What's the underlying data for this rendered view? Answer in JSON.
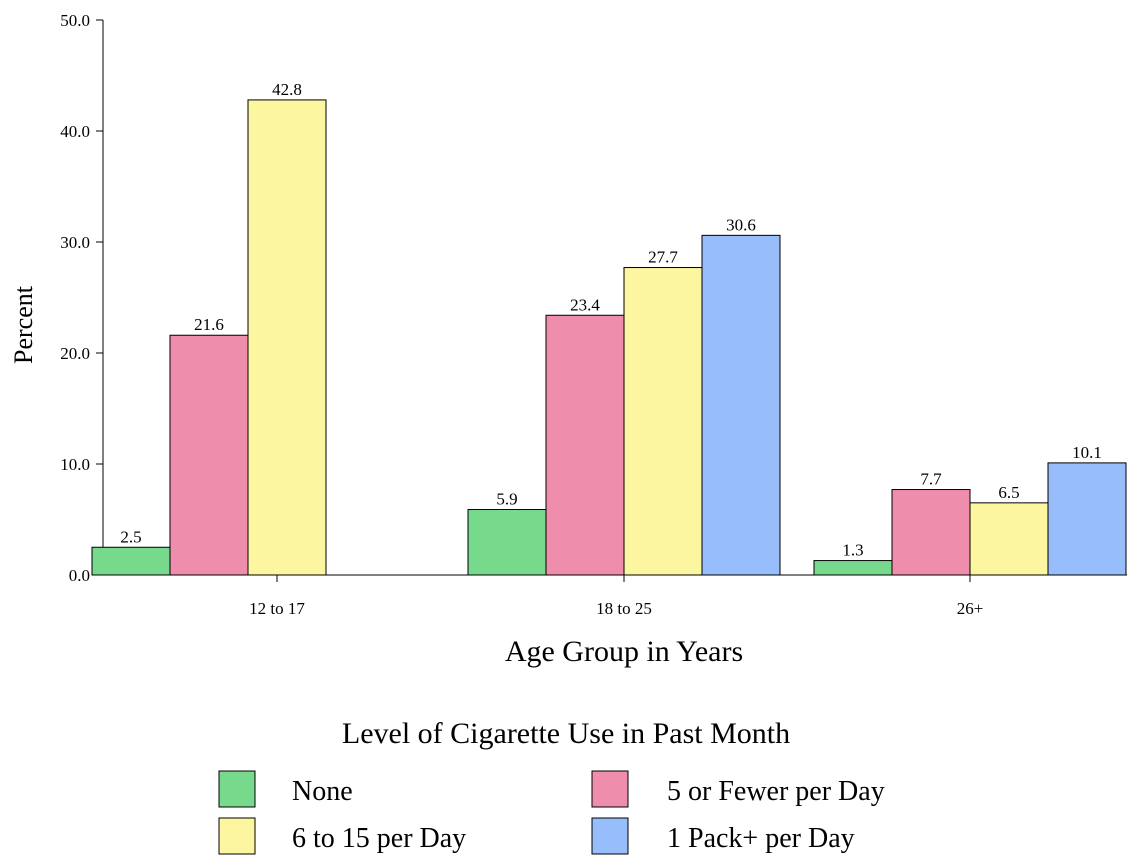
{
  "chart_data": {
    "type": "bar",
    "categories": [
      "12 to 17",
      "18 to 25",
      "26+"
    ],
    "xlabel": "Age Group in Years",
    "ylabel": "Percent",
    "ylim": [
      0,
      50
    ],
    "yticks": [
      0,
      10,
      20,
      30,
      40,
      50
    ],
    "ytick_labels": [
      "0.0",
      "10.0",
      "20.0",
      "30.0",
      "40.0",
      "50.0"
    ],
    "grid": false,
    "legend": {
      "title": "Level of Cigarette Use in Past Month",
      "placement": "bottom"
    },
    "series": [
      {
        "name": "None",
        "color": "#77d98c",
        "values": [
          2.5,
          5.9,
          1.3
        ],
        "labels": [
          "2.5",
          "5.9",
          "1.3"
        ]
      },
      {
        "name": "5 or Fewer per Day",
        "color": "#ef8dac",
        "values": [
          21.6,
          23.4,
          7.7
        ],
        "labels": [
          "21.6",
          "23.4",
          "7.7"
        ]
      },
      {
        "name": "6 to 15 per Day",
        "color": "#fdf6a1",
        "values": [
          42.8,
          27.7,
          6.5
        ],
        "labels": [
          "42.8",
          "27.7",
          "6.5"
        ]
      },
      {
        "name": "1 Pack+ per Day",
        "color": "#97bdfa",
        "values": [
          null,
          30.6,
          10.1
        ],
        "labels": [
          null,
          "30.6",
          "10.1"
        ]
      }
    ]
  }
}
